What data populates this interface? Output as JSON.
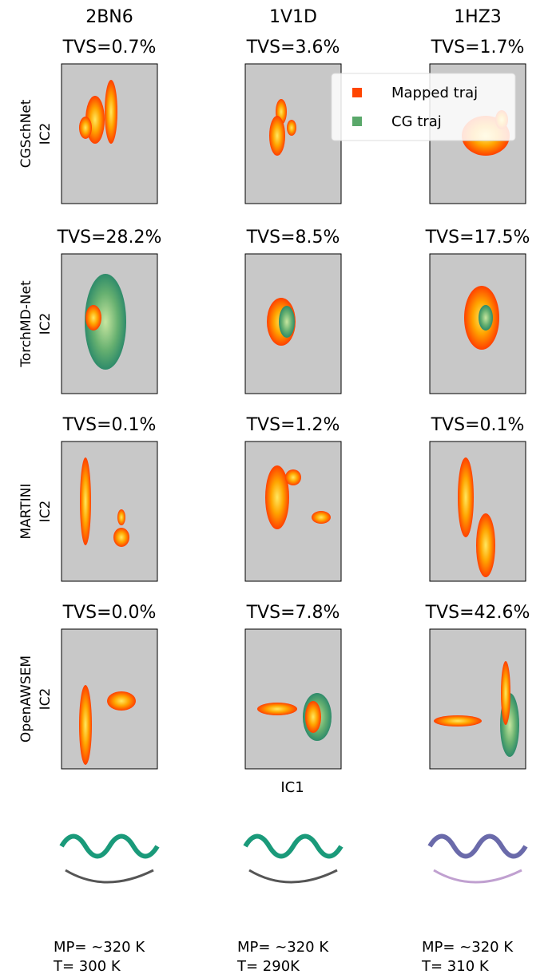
{
  "columns": [
    {
      "protein": "2BN6",
      "footer_mp": "MP= ~320 K",
      "footer_t": "T= 300 K"
    },
    {
      "protein": "1V1D",
      "footer_mp": "MP= ~320 K",
      "footer_t": "T= 290K"
    },
    {
      "protein": "1HZ3",
      "footer_mp": "MP= ~320 K",
      "footer_t": "T= 310 K"
    }
  ],
  "rows": [
    {
      "method": "CGSchNet",
      "y_label": "IC2",
      "tvs": [
        "TVS=0.7%",
        "TVS=3.6%",
        "TVS=1.7%"
      ]
    },
    {
      "method": "TorchMD-Net",
      "y_label": "IC2",
      "tvs": [
        "TVS=28.2%",
        "TVS=8.5%",
        "TVS=17.5%"
      ]
    },
    {
      "method": "MARTINI",
      "y_label": "IC2",
      "tvs": [
        "TVS=0.1%",
        "TVS=1.2%",
        "TVS=0.1%"
      ]
    },
    {
      "method": "OpenAWSEM",
      "y_label": "IC2",
      "tvs": [
        "TVS=0.0%",
        "TVS=7.8%",
        "TVS=42.6%"
      ]
    }
  ],
  "x_label": "IC1",
  "legend": [
    {
      "name": "Mapped traj",
      "color": "#ff4500"
    },
    {
      "name": "CG traj",
      "color": "#5aa86a"
    }
  ]
}
